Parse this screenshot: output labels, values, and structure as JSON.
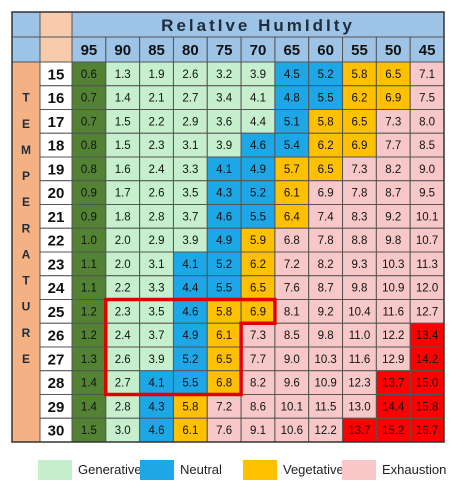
{
  "chart_data": {
    "type": "heatmap",
    "title": "RelatIve HumIdIty",
    "ylabel": "TEMPERATURE",
    "x": [
      95,
      90,
      85,
      80,
      75,
      70,
      65,
      60,
      55,
      50,
      45
    ],
    "y": [
      15,
      16,
      17,
      18,
      19,
      20,
      21,
      22,
      23,
      24,
      25,
      26,
      27,
      28,
      29,
      30
    ],
    "values": [
      [
        0.6,
        1.3,
        1.9,
        2.6,
        3.2,
        3.9,
        4.5,
        5.2,
        5.8,
        6.5,
        7.1
      ],
      [
        0.7,
        1.4,
        2.1,
        2.7,
        3.4,
        4.1,
        4.8,
        5.5,
        6.2,
        6.9,
        7.5
      ],
      [
        0.7,
        1.5,
        2.2,
        2.9,
        3.6,
        4.4,
        5.1,
        5.8,
        6.5,
        7.3,
        8.0
      ],
      [
        0.8,
        1.5,
        2.3,
        3.1,
        3.9,
        4.6,
        5.4,
        6.2,
        6.9,
        7.7,
        8.5
      ],
      [
        0.8,
        1.6,
        2.4,
        3.3,
        4.1,
        4.9,
        5.7,
        6.5,
        7.3,
        8.2,
        9.0
      ],
      [
        0.9,
        1.7,
        2.6,
        3.5,
        4.3,
        5.2,
        6.1,
        6.9,
        7.8,
        8.7,
        9.5
      ],
      [
        0.9,
        1.8,
        2.8,
        3.7,
        4.6,
        5.5,
        6.4,
        7.4,
        8.3,
        9.2,
        10.1
      ],
      [
        1.0,
        2.0,
        2.9,
        3.9,
        4.9,
        5.9,
        6.8,
        7.8,
        8.8,
        9.8,
        10.7
      ],
      [
        1.1,
        2.0,
        3.1,
        4.1,
        5.2,
        6.2,
        7.2,
        8.2,
        9.3,
        10.3,
        11.3
      ],
      [
        1.1,
        2.2,
        3.3,
        4.4,
        5.5,
        6.5,
        7.6,
        8.7,
        9.8,
        10.9,
        12.0
      ],
      [
        1.2,
        2.3,
        3.5,
        4.6,
        5.8,
        6.9,
        8.1,
        9.2,
        10.4,
        11.6,
        12.7
      ],
      [
        1.2,
        2.4,
        3.7,
        4.9,
        6.1,
        7.3,
        8.5,
        9.8,
        11.0,
        12.2,
        13.4
      ],
      [
        1.3,
        2.6,
        3.9,
        5.2,
        6.5,
        7.7,
        9.0,
        10.3,
        11.6,
        12.9,
        14.2
      ],
      [
        1.4,
        2.7,
        4.1,
        5.5,
        6.8,
        8.2,
        9.6,
        10.9,
        12.3,
        13.7,
        15.0
      ],
      [
        1.4,
        2.8,
        4.3,
        5.8,
        7.2,
        8.6,
        10.1,
        11.5,
        13.0,
        14.4,
        15.8
      ],
      [
        1.5,
        3.0,
        4.6,
        6.1,
        7.6,
        9.1,
        10.6,
        12.2,
        13.7,
        15.2,
        16.7
      ]
    ],
    "categories_map": [
      "DGGGGGNNVVE",
      "DGGGGGNNVVE",
      "DGGGGGNVVEE",
      "DGGGGNNVVEE",
      "DGGGNNVVEEE",
      "DGGGNNVEEEE",
      "DGGGNNVEEEE",
      "DGGGNVEEEEE",
      "DGGNNVEEEEE",
      "DGGNNVEEEEE",
      "DGGNVVEEEEE",
      "DGGNVEEEEER",
      "DGGNVEEEEER",
      "DGNNVEEEERR",
      "DGNVEEEEERR",
      "DGNVEEEERRR"
    ],
    "category_colors": {
      "D": "#548235",
      "G": "#c6efce",
      "N": "#1ea7e6",
      "V": "#ffc000",
      "E": "#f8c8c8",
      "R": "#ff0000"
    },
    "header_colors": {
      "header_row": "#9dc3e6",
      "temp_axis": "#f4b183",
      "corner_left": "#9dc3e6",
      "corner_right": "#f8cbad",
      "grid_line": "#555555",
      "highlight_border": "#e00000"
    },
    "legend": [
      {
        "label": "Generative",
        "color": "#c6efce"
      },
      {
        "label": "Neutral",
        "color": "#1ea7e6"
      },
      {
        "label": "Vegetative",
        "color": "#ffc000"
      },
      {
        "label": "Exhaustion",
        "color": "#f8c8c8"
      }
    ]
  }
}
